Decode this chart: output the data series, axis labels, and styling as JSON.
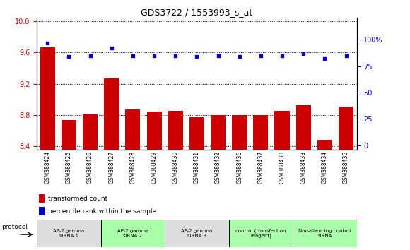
{
  "title": "GDS3722 / 1553993_s_at",
  "samples": [
    "GSM388424",
    "GSM388425",
    "GSM388426",
    "GSM388427",
    "GSM388428",
    "GSM388429",
    "GSM388430",
    "GSM388431",
    "GSM388432",
    "GSM388436",
    "GSM388437",
    "GSM388438",
    "GSM388433",
    "GSM388434",
    "GSM388435"
  ],
  "bar_values": [
    9.67,
    8.73,
    8.81,
    9.27,
    8.87,
    8.84,
    8.85,
    8.77,
    8.8,
    8.8,
    8.8,
    8.85,
    8.92,
    8.48,
    8.91
  ],
  "dot_values": [
    97,
    84,
    85,
    92,
    85,
    85,
    85,
    84,
    85,
    84,
    85,
    85,
    87,
    82,
    85
  ],
  "ylim_left": [
    8.35,
    10.05
  ],
  "ylim_right": [
    -4.4,
    121
  ],
  "yticks_left": [
    8.4,
    8.8,
    9.2,
    9.6,
    10.0
  ],
  "yticks_right": [
    0,
    25,
    50,
    75,
    100
  ],
  "bar_color": "#cc0000",
  "dot_color": "#0000cc",
  "groups": [
    {
      "label": "AP-2 gamma\nsiRNA 1",
      "indices": [
        0,
        1,
        2
      ],
      "color": "#dddddd"
    },
    {
      "label": "AP-2 gamma\nsiRNA 2",
      "indices": [
        3,
        4,
        5
      ],
      "color": "#aaffaa"
    },
    {
      "label": "AP-2 gamma\nsiRNA 3",
      "indices": [
        6,
        7,
        8
      ],
      "color": "#dddddd"
    },
    {
      "label": "control (transfection\nreagent)",
      "indices": [
        9,
        10,
        11
      ],
      "color": "#aaffaa"
    },
    {
      "label": "Non-silencing control\nsiRNA",
      "indices": [
        12,
        13,
        14
      ],
      "color": "#aaffaa"
    }
  ],
  "legend_bar_label": "transformed count",
  "legend_dot_label": "percentile rank within the sample",
  "protocol_label": "protocol",
  "background_color": "#ffffff",
  "grid_color": "#000000",
  "ticklabel_color_left": "#cc0000",
  "ticklabel_color_right": "#0000cc"
}
